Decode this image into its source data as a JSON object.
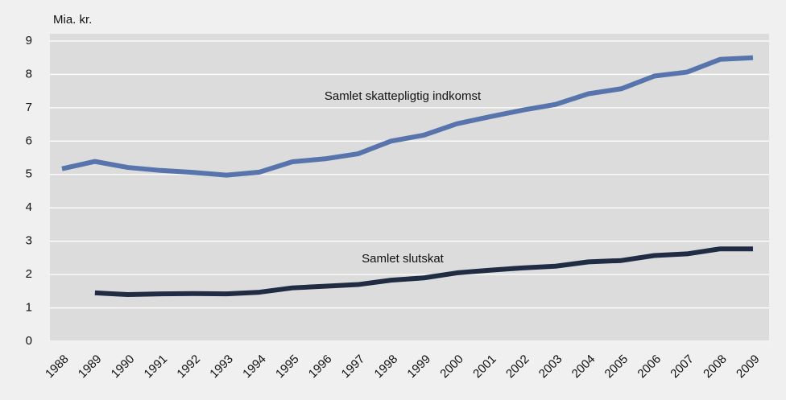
{
  "chart_data": {
    "type": "line",
    "y_label": "Mia. kr.",
    "categories": [
      "1988",
      "1989",
      "1990",
      "1991",
      "1992",
      "1993",
      "1994",
      "1995",
      "1996",
      "1997",
      "1998",
      "1999",
      "2000",
      "2001",
      "2002",
      "2003",
      "2004",
      "2005",
      "2006",
      "2007",
      "2008",
      "2009"
    ],
    "series": [
      {
        "name": "Samlet skattepligtig indkomst",
        "color": "#5874ad",
        "values": [
          5.17,
          5.39,
          5.21,
          5.12,
          5.06,
          4.98,
          5.07,
          5.38,
          5.47,
          5.62,
          6.0,
          6.18,
          6.52,
          6.73,
          6.93,
          7.1,
          7.42,
          7.57,
          7.95,
          8.07,
          8.45,
          8.5
        ]
      },
      {
        "name": "Samlet slutskat",
        "color": "#1f2c44",
        "values": [
          null,
          1.45,
          1.4,
          1.42,
          1.43,
          1.42,
          1.47,
          1.6,
          1.65,
          1.7,
          1.83,
          1.9,
          2.05,
          2.13,
          2.2,
          2.25,
          2.38,
          2.42,
          2.57,
          2.62,
          2.77,
          2.77
        ]
      }
    ],
    "ylim": [
      0,
      9
    ],
    "yticks": [
      0,
      1,
      2,
      3,
      4,
      5,
      6,
      7,
      8,
      9
    ],
    "grid": true
  }
}
